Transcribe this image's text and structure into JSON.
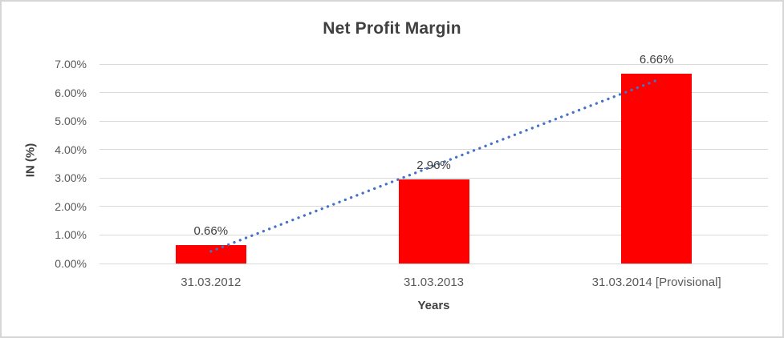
{
  "page": {
    "background_color": "#ffffff",
    "frame_border_color": "#d6d6d6"
  },
  "chart_data": {
    "type": "bar",
    "title": "Net Profit Margin",
    "xlabel": "Years",
    "ylabel": "IN (%)",
    "categories": [
      "31.03.2012",
      "31.03.2013",
      "31.03.2014 [Provisional]"
    ],
    "values": [
      0.66,
      2.96,
      6.66
    ],
    "data_labels": [
      "0.66%",
      "2.96%",
      "6.66%"
    ],
    "ylim": [
      0,
      7
    ],
    "ytick_labels": [
      "0.00%",
      "1.00%",
      "2.00%",
      "3.00%",
      "4.00%",
      "5.00%",
      "6.00%",
      "7.00%"
    ],
    "grid": true,
    "legend": "none",
    "bar_color": "#ff0000",
    "gridline_color": "#d9d9d9",
    "title_color": "#404040",
    "tick_label_color": "#595959",
    "trendline": {
      "type": "linear",
      "style": "dotted",
      "color": "#4472c4"
    }
  }
}
